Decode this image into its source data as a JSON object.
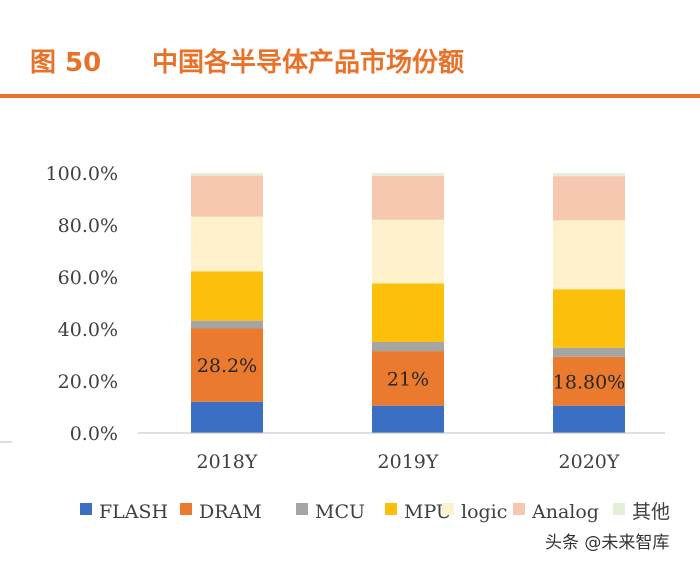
{
  "header": {
    "figure_label": "图 50",
    "title": "中国各半导体产品市场份额"
  },
  "watermark": "头条 @未来智库",
  "colors": {
    "accent": "#e8722a"
  },
  "chart_data": {
    "type": "bar",
    "stacked": true,
    "categories": [
      "2018Y",
      "2019Y",
      "2020Y"
    ],
    "ylim": [
      0,
      100
    ],
    "yticks": [
      "0.0%",
      "20.0%",
      "40.0%",
      "60.0%",
      "80.0%",
      "100.0%"
    ],
    "yticks_values": [
      0,
      20,
      40,
      60,
      80,
      100
    ],
    "legend_position": "bottom",
    "grid": false,
    "series": [
      {
        "name": "FLASH",
        "color": "#3a6fc4",
        "values": [
          12.0,
          10.5,
          10.5
        ]
      },
      {
        "name": "DRAM",
        "color": "#ea7a2e",
        "values": [
          28.2,
          21.0,
          18.8
        ]
      },
      {
        "name": "MCU",
        "color": "#a5a5a5",
        "values": [
          3.0,
          3.5,
          3.5
        ]
      },
      {
        "name": "MPU",
        "color": "#fdc00a",
        "values": [
          19.0,
          22.5,
          22.5
        ]
      },
      {
        "name": "logic",
        "color": "#fef2cc",
        "values": [
          21.0,
          24.5,
          26.5
        ]
      },
      {
        "name": "Analog",
        "color": "#f7c8b0",
        "values": [
          15.8,
          16.9,
          17.0
        ]
      },
      {
        "name": "其他",
        "color": "#e3efd9",
        "values": [
          1.0,
          1.1,
          1.2
        ]
      }
    ],
    "data_labels": [
      {
        "series": "DRAM",
        "category": "2018Y",
        "text": "28.2%"
      },
      {
        "series": "DRAM",
        "category": "2019Y",
        "text": "21%"
      },
      {
        "series": "DRAM",
        "category": "2020Y",
        "text": "18.80%"
      }
    ]
  }
}
